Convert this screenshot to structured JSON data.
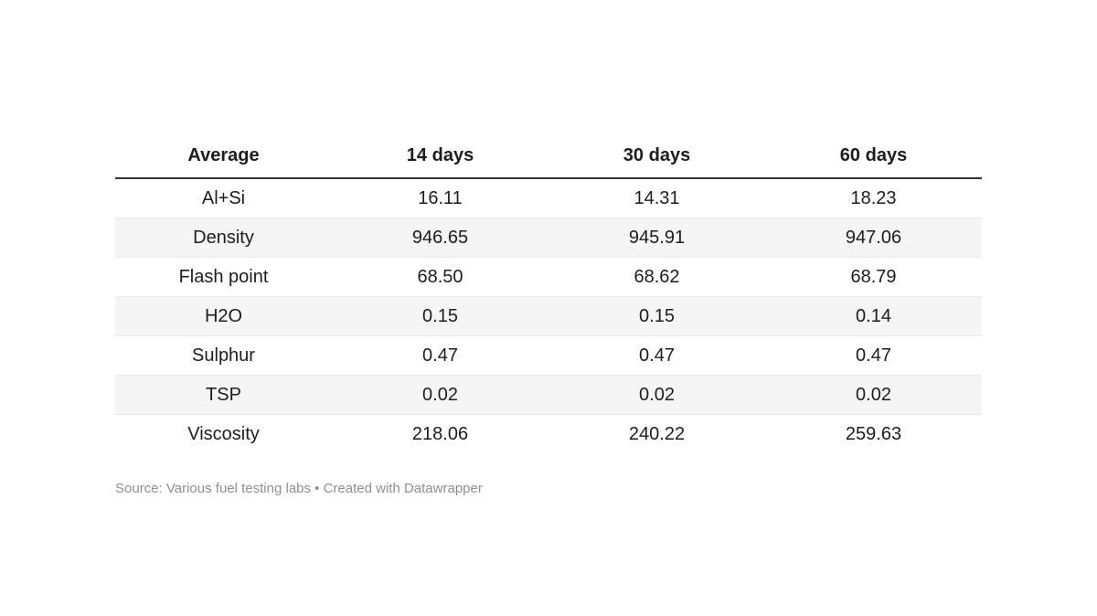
{
  "chart_data": {
    "type": "table",
    "columns": [
      "Average",
      "14 days",
      "30 days",
      "60 days"
    ],
    "rows": [
      {
        "label": "Al+Si",
        "values": [
          "16.11",
          "14.31",
          "18.23"
        ]
      },
      {
        "label": "Density",
        "values": [
          "946.65",
          "945.91",
          "947.06"
        ]
      },
      {
        "label": "Flash point",
        "values": [
          "68.50",
          "68.62",
          "68.79"
        ]
      },
      {
        "label": "H2O",
        "values": [
          "0.15",
          "0.15",
          "0.14"
        ]
      },
      {
        "label": "Sulphur",
        "values": [
          "0.47",
          "0.47",
          "0.47"
        ]
      },
      {
        "label": "TSP",
        "values": [
          "0.02",
          "0.02",
          "0.02"
        ]
      },
      {
        "label": "Viscosity",
        "values": [
          "218.06",
          "240.22",
          "259.63"
        ]
      }
    ],
    "footer": "Source: Various fuel testing labs • Created with Datawrapper",
    "layout": {
      "grid": "horizontal row separators",
      "striped_rows": [
        "Density",
        "H2O",
        "TSP"
      ],
      "alignment": "center"
    },
    "colors": {
      "text": "#1d1d1d",
      "header_border": "#333333",
      "row_border": "#e9e9e9",
      "stripe_background": "#f5f5f5",
      "footer_text": "#8f8f8f",
      "page_background": "#ffffff"
    }
  }
}
